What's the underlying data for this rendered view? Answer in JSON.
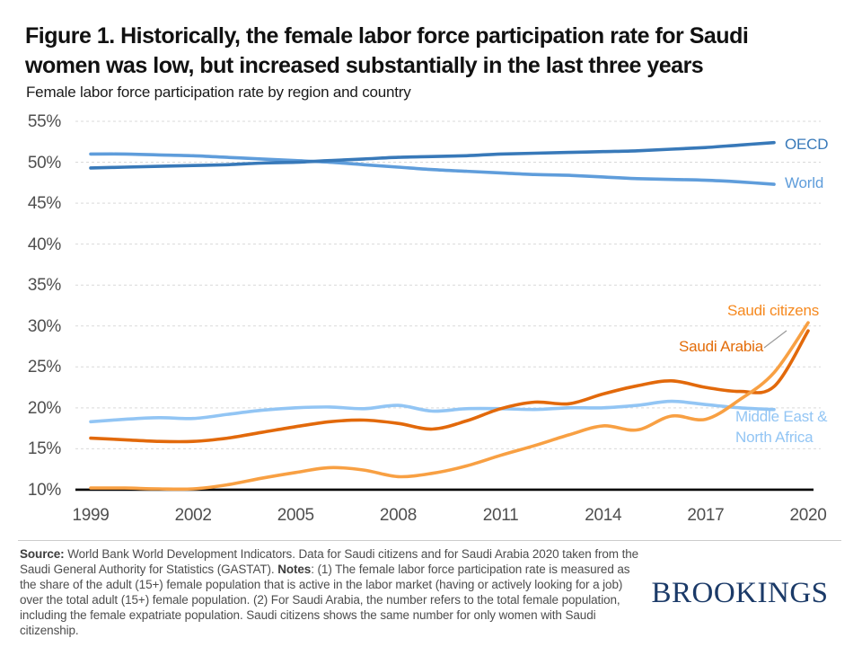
{
  "figure": {
    "title_line1": "Figure 1. Historically, the female labor force participation rate for Saudi",
    "title_line2": "women was low, but increased substantially in the last three years",
    "subtitle": "Female labor force participation rate by region and country"
  },
  "footer": {
    "source_label": "Source:",
    "source_text": " World Bank World Development Indicators. Data for Saudi citizens and for Saudi Arabia 2020 taken from the Saudi General Authority for Statistics (GASTAT). ",
    "notes_label": "Notes",
    "notes_text": ": (1) The female labor force participation rate is measured as the share of the adult (15+) female population that is active in the labor market (having or actively looking for a job) over the total adult (15+) female population. (2) For Saudi Arabia, the number refers to the total female population, including the female expatriate population. Saudi citizens shows the same number for only women with Saudi citizenship.",
    "logo_text": "BROOKINGS",
    "logo_color": "#1b3a68"
  },
  "chart_data": {
    "type": "line",
    "title": "Female labor force participation rate by region and country",
    "unit": "%",
    "xlim": [
      1999,
      2020
    ],
    "ylim": [
      10,
      55
    ],
    "grid": "horizontal-dashed",
    "baseline_value": 10,
    "legend_position": "end-of-line-labels",
    "x_tick_years": [
      1999,
      2002,
      2005,
      2008,
      2011,
      2014,
      2017,
      2020
    ],
    "x_tick_labels": [
      "1999",
      "2002",
      "2005",
      "2008",
      "2011",
      "2014",
      "2017",
      "2020"
    ],
    "y_ticks": [
      55,
      50,
      45,
      40,
      35,
      30,
      25,
      20,
      15,
      10
    ],
    "y_tick_labels": [
      "55%",
      "50%",
      "45%",
      "40%",
      "35%",
      "30%",
      "25%",
      "20%",
      "15%",
      "10%"
    ],
    "colors": {
      "gridline": "#d9d9d9",
      "baseline": "#000000",
      "leader_line": "#999999"
    },
    "series": [
      {
        "name": "World",
        "color": "#5f9ddb",
        "label_color": "#5f9ddb",
        "start_year": 1999,
        "values": [
          51.0,
          51.0,
          50.9,
          50.8,
          50.6,
          50.4,
          50.2,
          50.0,
          49.7,
          49.4,
          49.1,
          48.9,
          48.7,
          48.5,
          48.4,
          48.2,
          48.0,
          47.9,
          47.8,
          47.6,
          47.3
        ]
      },
      {
        "name": "OECD",
        "color": "#3879b9",
        "label_color": "#3879b9",
        "start_year": 1999,
        "values": [
          49.3,
          49.4,
          49.5,
          49.6,
          49.7,
          49.9,
          50.0,
          50.2,
          50.4,
          50.6,
          50.7,
          50.8,
          51.0,
          51.1,
          51.2,
          51.3,
          51.4,
          51.6,
          51.8,
          52.1,
          52.4
        ]
      },
      {
        "name": "Middle East & North Africa",
        "color": "#92c5f4",
        "label_color": "#92c5f4",
        "start_year": 1999,
        "values": [
          18.3,
          18.6,
          18.8,
          18.7,
          19.2,
          19.7,
          20.0,
          20.1,
          19.9,
          20.3,
          19.6,
          19.9,
          19.9,
          19.8,
          20.0,
          20.0,
          20.3,
          20.8,
          20.4,
          20.0,
          19.8
        ]
      },
      {
        "name": "Saudi Arabia",
        "color": "#e2690b",
        "label_color": "#e36c09",
        "start_year": 1999,
        "values": [
          16.3,
          16.1,
          15.9,
          15.9,
          16.3,
          17.0,
          17.7,
          18.3,
          18.5,
          18.1,
          17.4,
          18.4,
          19.9,
          20.7,
          20.5,
          21.7,
          22.7,
          23.3,
          22.5,
          22.0,
          22.6,
          29.4
        ]
      },
      {
        "name": "Saudi citizens",
        "color": "#f8a043",
        "label_color": "#f6891f",
        "start_year": 1999,
        "values": [
          10.2,
          10.2,
          10.1,
          10.1,
          10.6,
          11.4,
          12.1,
          12.7,
          12.4,
          11.6,
          12.0,
          12.9,
          14.2,
          15.4,
          16.7,
          17.8,
          17.3,
          19.0,
          18.6,
          21.0,
          24.3,
          30.4
        ]
      }
    ]
  }
}
